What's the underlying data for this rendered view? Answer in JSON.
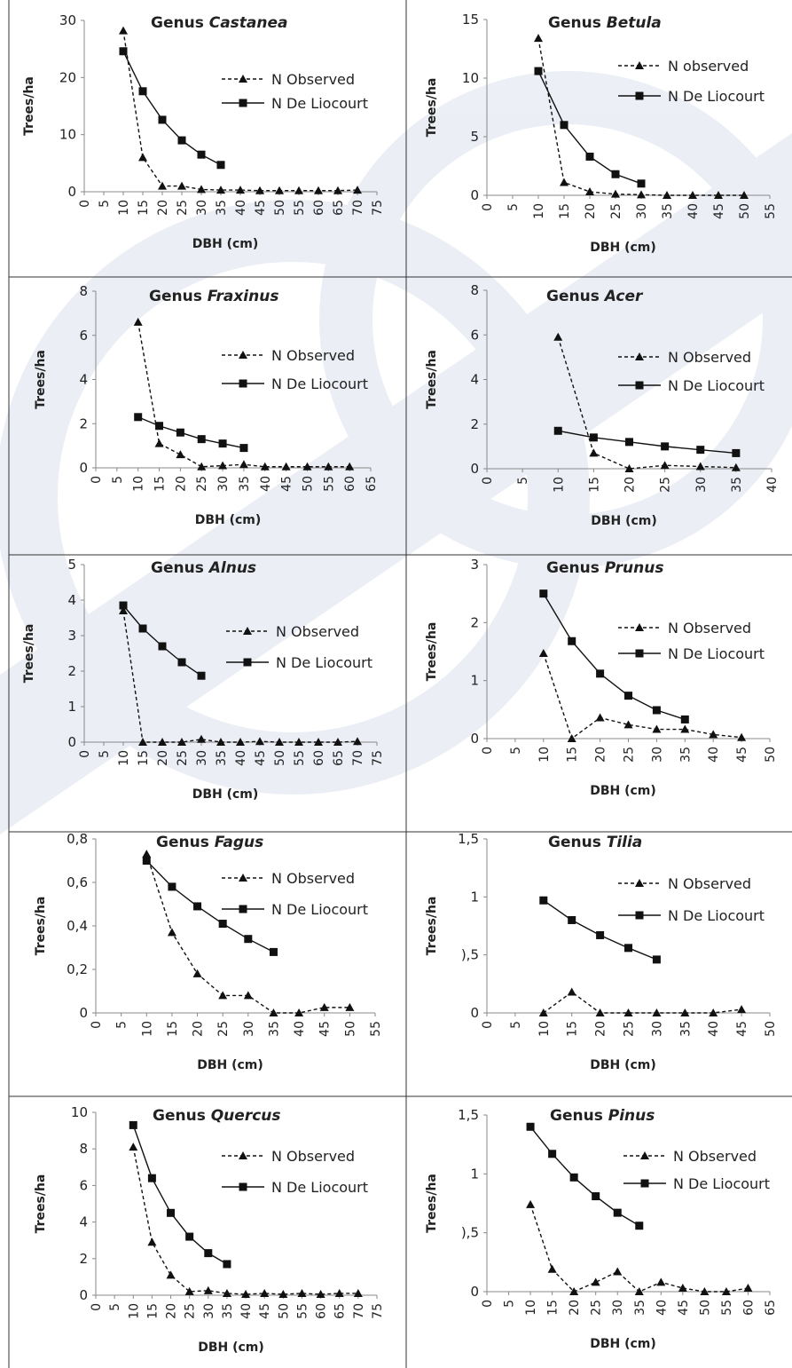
{
  "chart_data": [
    {
      "type": "line",
      "title_prefix": "Genus ",
      "title_italic": "Castanea",
      "xlabel": "DBH (cm)",
      "ylabel": "Trees/ha",
      "xlim": [
        0,
        75
      ],
      "ylim": [
        0,
        30
      ],
      "yticks": [
        0,
        10,
        20,
        30
      ],
      "ytick_labels": [
        "0",
        "10",
        "20",
        "30"
      ],
      "xticks": [
        0,
        5,
        10,
        15,
        20,
        25,
        30,
        35,
        40,
        45,
        50,
        55,
        60,
        65,
        70,
        75
      ],
      "xtick_labels": [
        "0",
        "5",
        "10",
        "15",
        "20",
        "25",
        "30",
        "35",
        "40",
        "45",
        "50",
        "55",
        "60",
        "65",
        "70",
        "75"
      ],
      "legend": [
        "N Observed",
        "N De Liocourt"
      ],
      "series": [
        {
          "name": "N Observed",
          "x": [
            10,
            15,
            20,
            25,
            30,
            35,
            40,
            45,
            50,
            55,
            60,
            65,
            70
          ],
          "values": [
            28.2,
            6,
            1,
            1,
            0.4,
            0.3,
            0.3,
            0.2,
            0.2,
            0.2,
            0.2,
            0.2,
            0.3
          ]
        },
        {
          "name": "N De Liocourt",
          "x": [
            10,
            15,
            20,
            25,
            30,
            35
          ],
          "values": [
            24.6,
            17.6,
            12.6,
            9,
            6.5,
            4.7
          ]
        }
      ]
    },
    {
      "type": "line",
      "title_prefix": "Genus ",
      "title_italic": "Betula",
      "xlabel": "DBH (cm)",
      "ylabel": "Trees/ha",
      "xlim": [
        0,
        55
      ],
      "ylim": [
        0,
        15
      ],
      "yticks": [
        0,
        5,
        10,
        15
      ],
      "ytick_labels": [
        "0",
        "5",
        "10",
        "15"
      ],
      "xticks": [
        0,
        5,
        10,
        15,
        20,
        25,
        30,
        35,
        40,
        45,
        50,
        55
      ],
      "xtick_labels": [
        "0",
        "5",
        "10",
        "15",
        "20",
        "25",
        "30",
        "35",
        "40",
        "45",
        "50",
        "55"
      ],
      "legend": [
        "N observed",
        "N De Liocourt"
      ],
      "series": [
        {
          "name": "N observed",
          "x": [
            10,
            15,
            20,
            25,
            30,
            35,
            40,
            45,
            50
          ],
          "values": [
            13.4,
            1.1,
            0.3,
            0.1,
            0.05,
            0,
            0,
            0,
            0
          ]
        },
        {
          "name": "N De Liocourt",
          "x": [
            10,
            15,
            20,
            25,
            30
          ],
          "values": [
            10.6,
            6,
            3.3,
            1.8,
            1
          ]
        }
      ]
    },
    {
      "type": "line",
      "title_prefix": "Genus ",
      "title_italic": "Fraxinus",
      "xlabel": "DBH (cm)",
      "ylabel": "Trees/ha",
      "xlim": [
        0,
        65
      ],
      "ylim": [
        0,
        8
      ],
      "yticks": [
        0,
        2,
        4,
        6,
        8
      ],
      "ytick_labels": [
        "0",
        "2",
        "4",
        "6",
        "8"
      ],
      "xticks": [
        0,
        5,
        10,
        15,
        20,
        25,
        30,
        35,
        40,
        45,
        50,
        55,
        60,
        65
      ],
      "xtick_labels": [
        "0",
        "5",
        "10",
        "15",
        "20",
        "25",
        "30",
        "35",
        "40",
        "45",
        "50",
        "55",
        "60",
        "65"
      ],
      "legend": [
        "N Observed",
        "N De Liocourt"
      ],
      "series": [
        {
          "name": "N Observed",
          "x": [
            10,
            15,
            20,
            25,
            30,
            35,
            40,
            45,
            50,
            55,
            60
          ],
          "values": [
            6.6,
            1.1,
            0.6,
            0.05,
            0.1,
            0.15,
            0.05,
            0.05,
            0.05,
            0.05,
            0.05
          ]
        },
        {
          "name": "N De Liocourt",
          "x": [
            10,
            15,
            20,
            25,
            30,
            35
          ],
          "values": [
            2.3,
            1.9,
            1.6,
            1.3,
            1.1,
            0.9
          ]
        }
      ]
    },
    {
      "type": "line",
      "title_prefix": "Genus ",
      "title_italic": "Acer",
      "xlabel": "DBH (cm)",
      "ylabel": "Trees/ha",
      "xlim": [
        0,
        40
      ],
      "ylim": [
        0,
        8
      ],
      "yticks": [
        0,
        2,
        4,
        6,
        8
      ],
      "ytick_labels": [
        "0",
        "2",
        "4",
        "6",
        "8"
      ],
      "xticks": [
        0,
        5,
        10,
        15,
        20,
        25,
        30,
        35,
        40
      ],
      "xtick_labels": [
        "0",
        "5",
        "10",
        "15",
        "20",
        "25",
        "30",
        "35",
        "40"
      ],
      "legend": [
        "N Observed",
        "N De Liocourt"
      ],
      "series": [
        {
          "name": "N Observed",
          "x": [
            10,
            15,
            20,
            25,
            30,
            35
          ],
          "values": [
            5.9,
            0.7,
            0,
            0.15,
            0.1,
            0.05
          ]
        },
        {
          "name": "N De Liocourt",
          "x": [
            10,
            15,
            20,
            25,
            30,
            35
          ],
          "values": [
            1.7,
            1.4,
            1.2,
            1,
            0.85,
            0.7
          ]
        }
      ]
    },
    {
      "type": "line",
      "title_prefix": "Genus ",
      "title_italic": "Alnus",
      "xlabel": "DBH (cm)",
      "ylabel": "Trees/ha",
      "xlim": [
        0,
        75
      ],
      "ylim": [
        0,
        5
      ],
      "yticks": [
        0,
        1,
        2,
        3,
        4,
        5
      ],
      "ytick_labels": [
        "0",
        "1",
        "2",
        "3",
        "4",
        "5"
      ],
      "xticks": [
        0,
        5,
        10,
        15,
        20,
        25,
        30,
        35,
        40,
        45,
        50,
        55,
        60,
        65,
        70,
        75
      ],
      "xtick_labels": [
        "0",
        "5",
        "10",
        "15",
        "20",
        "25",
        "30",
        "35",
        "40",
        "45",
        "50",
        "55",
        "60",
        "65",
        "70",
        "75"
      ],
      "legend": [
        "N Observed",
        "N De Liocourt"
      ],
      "series": [
        {
          "name": "N Observed",
          "x": [
            10,
            15,
            20,
            25,
            30,
            35,
            40,
            45,
            50,
            55,
            60,
            65,
            70
          ],
          "values": [
            3.7,
            0,
            0,
            0,
            0.08,
            0,
            0,
            0.02,
            0,
            0,
            0,
            0,
            0.02
          ]
        },
        {
          "name": "N De Liocourt",
          "x": [
            10,
            15,
            20,
            25,
            30
          ],
          "values": [
            3.85,
            3.2,
            2.7,
            2.25,
            1.87
          ]
        }
      ]
    },
    {
      "type": "line",
      "title_prefix": "Genus ",
      "title_italic": "Prunus",
      "xlabel": "DBH (cm)",
      "ylabel": "Trees/ha",
      "xlim": [
        0,
        50
      ],
      "ylim": [
        0,
        3
      ],
      "yticks": [
        0,
        1,
        2,
        3
      ],
      "ytick_labels": [
        "0",
        "1",
        "2",
        "3"
      ],
      "xticks": [
        0,
        5,
        10,
        15,
        20,
        25,
        30,
        35,
        40,
        45,
        50
      ],
      "xtick_labels": [
        "0",
        "5",
        "10",
        "15",
        "20",
        "25",
        "30",
        "35",
        "40",
        "45",
        "50"
      ],
      "legend": [
        "N Observed",
        "N De Liocourt"
      ],
      "series": [
        {
          "name": "N Observed",
          "x": [
            10,
            15,
            20,
            25,
            30,
            35,
            40,
            45
          ],
          "values": [
            1.47,
            0,
            0.36,
            0.24,
            0.16,
            0.16,
            0.07,
            0.02
          ]
        },
        {
          "name": "N De Liocourt",
          "x": [
            10,
            15,
            20,
            25,
            30,
            35
          ],
          "values": [
            2.5,
            1.68,
            1.12,
            0.74,
            0.49,
            0.33
          ]
        }
      ]
    },
    {
      "type": "line",
      "title_prefix": "Genus ",
      "title_italic": "Fagus",
      "xlabel": "DBH (cm)",
      "ylabel": "Trees/ha",
      "xlim": [
        0,
        55
      ],
      "ylim": [
        0,
        0.8
      ],
      "yticks": [
        0,
        0.2,
        0.4,
        0.6,
        0.8
      ],
      "ytick_labels": [
        "0",
        "0,2",
        "0,4",
        "0,6",
        "0,8"
      ],
      "xticks": [
        0,
        5,
        10,
        15,
        20,
        25,
        30,
        35,
        40,
        45,
        50,
        55
      ],
      "xtick_labels": [
        "0",
        "5",
        "10",
        "15",
        "20",
        "25",
        "30",
        "35",
        "40",
        "45",
        "50",
        "55"
      ],
      "legend": [
        "N Observed",
        "N De Liocourt"
      ],
      "series": [
        {
          "name": "N Observed",
          "x": [
            10,
            15,
            20,
            25,
            30,
            35,
            40,
            45,
            50
          ],
          "values": [
            0.73,
            0.37,
            0.18,
            0.08,
            0.08,
            0,
            0,
            0.025,
            0.025
          ]
        },
        {
          "name": "N De Liocourt",
          "x": [
            10,
            15,
            20,
            25,
            30,
            35
          ],
          "values": [
            0.7,
            0.58,
            0.49,
            0.41,
            0.34,
            0.28
          ]
        }
      ]
    },
    {
      "type": "line",
      "title_prefix": "Genus ",
      "title_italic": "Tilia",
      "xlabel": "DBH (cm)",
      "ylabel": "Trees/ha",
      "xlim": [
        0,
        50
      ],
      "ylim": [
        0,
        1.5
      ],
      "yticks": [
        0,
        0.5,
        1,
        1.5
      ],
      "ytick_labels": [
        "0",
        "),5",
        "1",
        "1,5"
      ],
      "xticks": [
        0,
        5,
        10,
        15,
        20,
        25,
        30,
        35,
        40,
        45,
        50
      ],
      "xtick_labels": [
        "0",
        "5",
        "10",
        "15",
        "20",
        "25",
        "30",
        "35",
        "40",
        "45",
        "50"
      ],
      "legend": [
        "N Observed",
        "N De Liocourt"
      ],
      "series": [
        {
          "name": "N Observed",
          "x": [
            10,
            15,
            20,
            25,
            30,
            35,
            40,
            45
          ],
          "values": [
            0,
            0.18,
            0,
            0,
            0,
            0,
            0,
            0.03
          ]
        },
        {
          "name": "N De Liocourt",
          "x": [
            10,
            15,
            20,
            25,
            30
          ],
          "values": [
            0.97,
            0.8,
            0.67,
            0.56,
            0.46
          ]
        }
      ]
    },
    {
      "type": "line",
      "title_prefix": "Genus ",
      "title_italic": "Quercus",
      "xlabel": "DBH (cm)",
      "ylabel": "Trees/ha",
      "xlim": [
        0,
        75
      ],
      "ylim": [
        0,
        10
      ],
      "yticks": [
        0,
        2,
        4,
        6,
        8,
        10
      ],
      "ytick_labels": [
        "0",
        "2",
        "4",
        "6",
        "8",
        "10"
      ],
      "xticks": [
        0,
        5,
        10,
        15,
        20,
        25,
        30,
        35,
        40,
        45,
        50,
        55,
        60,
        65,
        70,
        75
      ],
      "xtick_labels": [
        "0",
        "5",
        "10",
        "15",
        "20",
        "25",
        "30",
        "35",
        "40",
        "45",
        "50",
        "55",
        "60",
        "65",
        "70",
        "75"
      ],
      "legend": [
        "N Observed",
        "N De Liocourt"
      ],
      "series": [
        {
          "name": "N Observed",
          "x": [
            10,
            15,
            20,
            25,
            30,
            35,
            40,
            45,
            50,
            55,
            60,
            65,
            70
          ],
          "values": [
            8.1,
            2.9,
            1.1,
            0.2,
            0.25,
            0.1,
            0.05,
            0.1,
            0.05,
            0.1,
            0.05,
            0.1,
            0.1
          ]
        },
        {
          "name": "N De Liocourt",
          "x": [
            10,
            15,
            20,
            25,
            30,
            35
          ],
          "values": [
            9.3,
            6.4,
            4.5,
            3.2,
            2.3,
            1.7
          ]
        }
      ]
    },
    {
      "type": "line",
      "title_prefix": "Genus ",
      "title_italic": "Pinus",
      "xlabel": "DBH (cm)",
      "ylabel": "Trees/ha",
      "xlim": [
        0,
        65
      ],
      "ylim": [
        0,
        1.5
      ],
      "yticks": [
        0,
        0.5,
        1,
        1.5
      ],
      "ytick_labels": [
        "0",
        "),5",
        "1",
        "1,5"
      ],
      "xticks": [
        0,
        5,
        10,
        15,
        20,
        25,
        30,
        35,
        40,
        45,
        50,
        55,
        60,
        65
      ],
      "xtick_labels": [
        "0",
        "5",
        "10",
        "15",
        "20",
        "25",
        "30",
        "35",
        "40",
        "45",
        "50",
        "55",
        "60",
        "65"
      ],
      "legend": [
        "N Observed",
        "N De Liocourt"
      ],
      "series": [
        {
          "name": "N Observed",
          "x": [
            10,
            15,
            20,
            25,
            30,
            35,
            40,
            45,
            50,
            55,
            60
          ],
          "values": [
            0.74,
            0.19,
            0,
            0.08,
            0.17,
            0,
            0.08,
            0.03,
            0,
            0,
            0.03
          ]
        },
        {
          "name": "N De Liocourt",
          "x": [
            10,
            15,
            20,
            25,
            30,
            35
          ],
          "values": [
            1.4,
            1.17,
            0.97,
            0.81,
            0.67,
            0.56
          ]
        }
      ]
    }
  ]
}
